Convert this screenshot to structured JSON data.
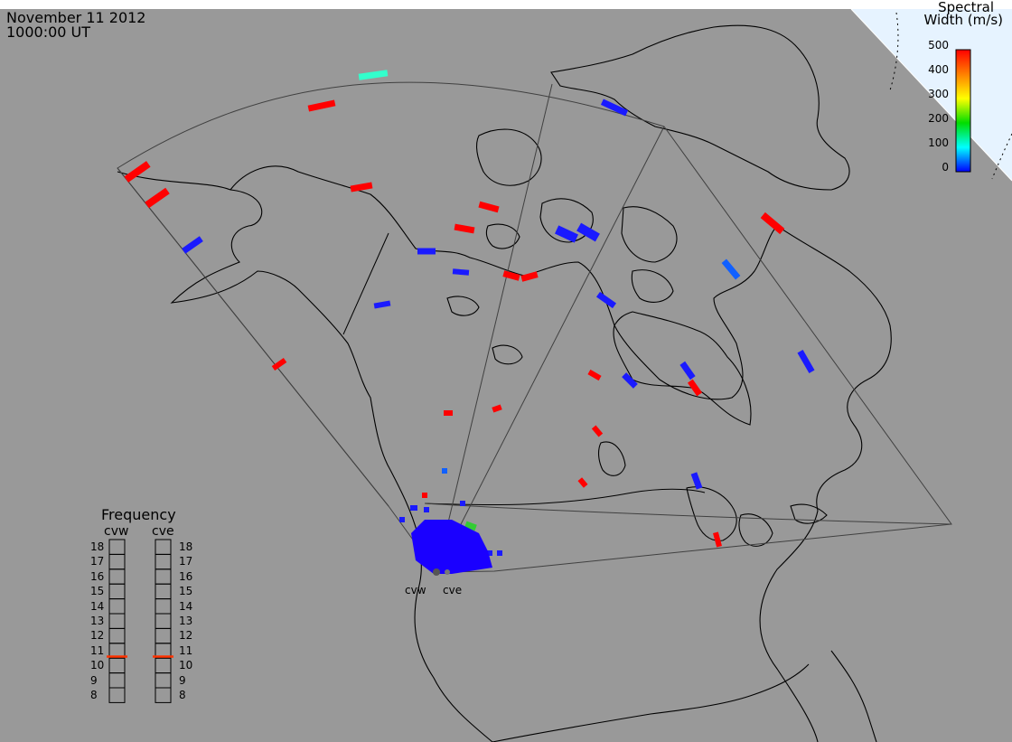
{
  "header": {
    "date": "November 11 2012",
    "time": "1000:00 UT"
  },
  "colorbar": {
    "title_line1": "Spectral",
    "title_line2": "Width (m/s)",
    "ticks": [
      "500",
      "400",
      "300",
      "200",
      "100",
      "0"
    ],
    "colors": [
      "#ff0000",
      "#ff7f00",
      "#ffff00",
      "#00dd00",
      "#00ffff",
      "#0000ff"
    ]
  },
  "frequency_panel": {
    "title": "Frequency",
    "radars": [
      "cvw",
      "cve"
    ],
    "scale": [
      "18",
      "17",
      "16",
      "15",
      "14",
      "13",
      "12",
      "11",
      "10",
      "9",
      "8"
    ],
    "current_mhz": [
      10.6,
      10.6
    ],
    "marker_color": "#ff3300"
  },
  "radars": [
    {
      "code": "cvw",
      "label": "cvw"
    },
    {
      "code": "cve",
      "label": "cve"
    }
  ],
  "map": {
    "background": "#999999",
    "ocean_color": "#e6f3ff",
    "coast_color": "#000000",
    "fov_color": "#404040"
  }
}
